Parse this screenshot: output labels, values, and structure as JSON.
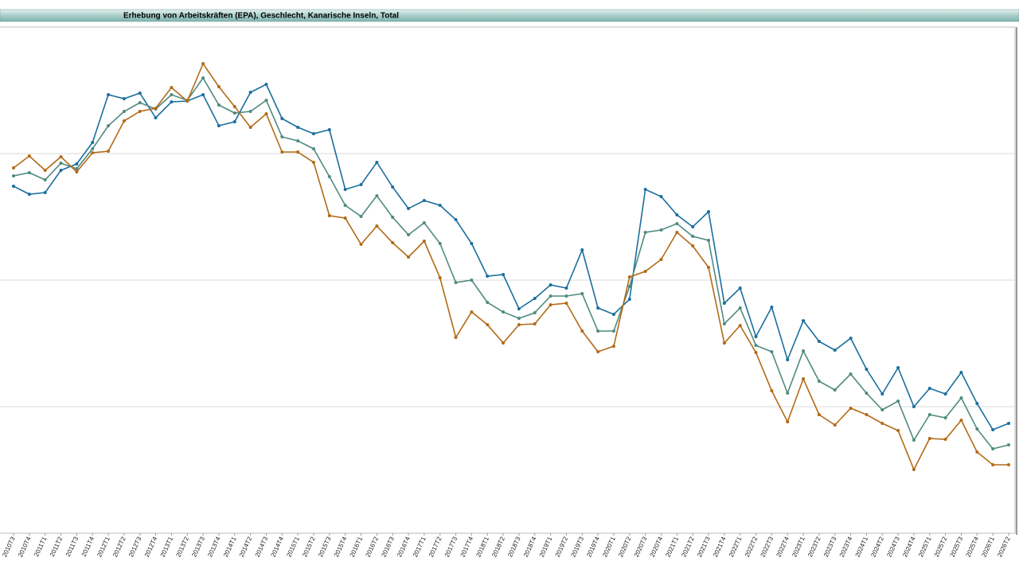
{
  "chart_data": {
    "type": "line",
    "title": "Erhebung von Arbeitskräften (EPA), Geschlecht, Kanarische Inseln, Total",
    "categories": [
      "2010T3",
      "2010T4",
      "2011T1",
      "2011T2",
      "2011T3",
      "2011T4",
      "2012T1",
      "2012T2",
      "2012T3",
      "2012T4",
      "2013T1",
      "2013T2",
      "2013T3",
      "2013T4",
      "2014T1",
      "2014T2",
      "2014T3",
      "2014T4",
      "2015T1",
      "2015T2",
      "2015T3",
      "2015T4",
      "2016T1",
      "2016T2",
      "2016T3",
      "2016T4",
      "2017T1",
      "2017T2",
      "2017T3",
      "2017T4",
      "2018T1",
      "2018T2",
      "2018T3",
      "2018T4",
      "2019T1",
      "2019T2",
      "2019T3",
      "2019T4",
      "2020T1",
      "2020T2",
      "2020T3",
      "2020T4",
      "2021T1",
      "2021T2",
      "2021T3",
      "2021T4",
      "2022T1",
      "2022T2",
      "2022T3",
      "2022T4",
      "2023T1",
      "2023T2",
      "2023T3",
      "2023T4",
      "2024T1",
      "2024T2",
      "2024T3",
      "2024T4",
      "2025T1",
      "2025T2",
      "2025T3",
      "2025T4",
      "2026T1",
      "2026T2"
    ],
    "series": [
      {
        "color": "#1a6e9e",
        "values": [
          436,
          426,
          428,
          456,
          464,
          491,
          551,
          546,
          553,
          522,
          542,
          543,
          551,
          512,
          517,
          554,
          564,
          521,
          510,
          502,
          507,
          432,
          438,
          466,
          435,
          408,
          418,
          412,
          394,
          364,
          323,
          325,
          282,
          295,
          312,
          308,
          356,
          283,
          275,
          294,
          432,
          423,
          400,
          385,
          404,
          289,
          308,
          247,
          284,
          218,
          267,
          241,
          230,
          245,
          206,
          175,
          208,
          159,
          182,
          175,
          202,
          163,
          130,
          138
        ]
      },
      {
        "color": "#4f8a7f",
        "values": [
          449,
          453,
          444,
          465,
          458,
          483,
          512,
          530,
          541,
          533,
          551,
          544,
          572,
          538,
          528,
          530,
          544,
          498,
          493,
          483,
          448,
          412,
          398,
          424,
          397,
          375,
          390,
          364,
          315,
          318,
          290,
          278,
          270,
          277,
          298,
          298,
          301,
          254,
          254,
          310,
          378,
          381,
          389,
          373,
          368,
          263,
          283,
          236,
          228,
          176,
          229,
          191,
          180,
          200,
          176,
          155,
          166,
          117,
          149,
          145,
          170,
          131,
          106,
          111
        ]
      },
      {
        "color": "#b36a17",
        "values": [
          459,
          474,
          456,
          473,
          454,
          478,
          480,
          518,
          530,
          534,
          560,
          543,
          590,
          561,
          536,
          510,
          527,
          479,
          479,
          466,
          399,
          396,
          363,
          386,
          365,
          347,
          367,
          321,
          246,
          278,
          262,
          239,
          262,
          263,
          287,
          289,
          254,
          228,
          235,
          322,
          329,
          344,
          378,
          361,
          334,
          239,
          261,
          227,
          179,
          140,
          194,
          149,
          136,
          157,
          149,
          138,
          129,
          80,
          119,
          118,
          142,
          102,
          86,
          86
        ]
      }
    ],
    "ylim": [
      0,
      636
    ],
    "yticks": [
      159,
      318,
      477
    ],
    "grid": true
  }
}
